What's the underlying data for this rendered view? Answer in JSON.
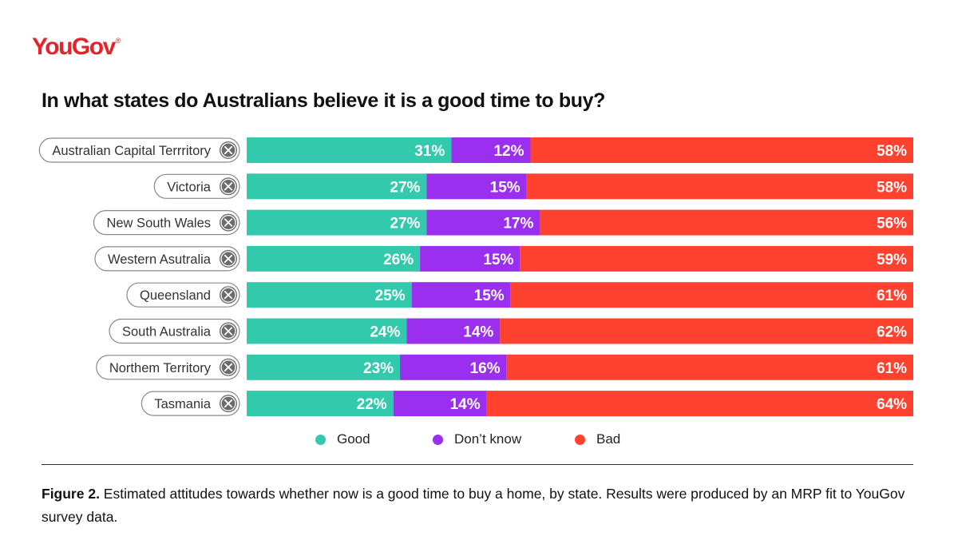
{
  "brand": {
    "name": "YouGov",
    "mark": "®",
    "color": "#e8222a"
  },
  "title": "In what states do Australians believe it is a good time to buy?",
  "colors": {
    "good": "#33c9ad",
    "dont_know": "#9b2ff0",
    "bad": "#ff4230",
    "pill_border": "#888888",
    "close_icon_bg": "#6b6b6b"
  },
  "chart_data": {
    "type": "bar",
    "orientation": "horizontal",
    "stacked": true,
    "categories": [
      "Australian Capital Terrritory",
      "Victoria",
      "New South Wales",
      "Western Asutralia",
      "Queensland",
      "South Australia",
      "Northem Territory",
      "Tasmania"
    ],
    "series": [
      {
        "name": "Good",
        "values": [
          31,
          27,
          27,
          26,
          25,
          24,
          23,
          22
        ]
      },
      {
        "name": "Don’t know",
        "values": [
          12,
          15,
          17,
          15,
          15,
          14,
          16,
          14
        ]
      },
      {
        "name": "Bad",
        "values": [
          58,
          58,
          56,
          59,
          61,
          62,
          61,
          64
        ]
      }
    ],
    "value_suffix": "%",
    "legend_position": "bottom",
    "grid": false
  },
  "legend": [
    "Good",
    "Don’t know",
    "Bad"
  ],
  "caption": {
    "label": "Figure 2.",
    "text": " Estimated attitudes towards whether now is a good time to buy a home, by state. Results were produced by an MRP fit to YouGov survey data."
  }
}
